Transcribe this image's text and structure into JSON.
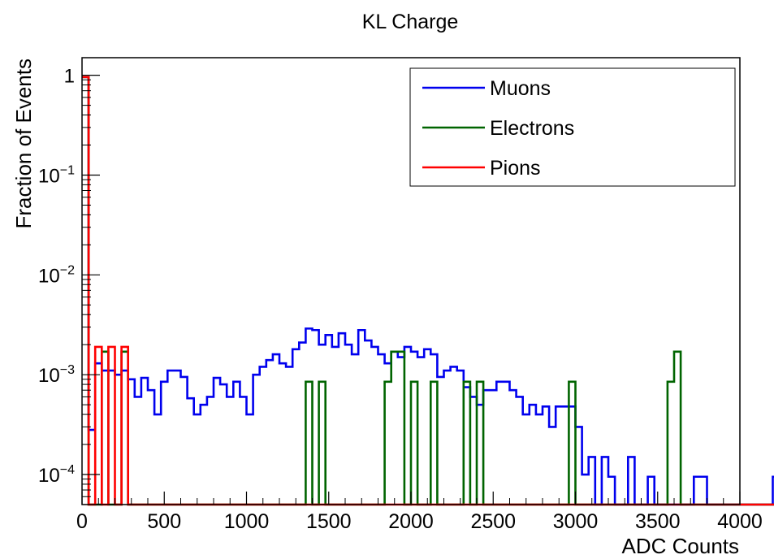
{
  "chart_data": {
    "type": "histogram",
    "title": "KL Charge",
    "xlabel": "ADC Counts",
    "ylabel": "Fraction of Events",
    "xlim": [
      0,
      4000
    ],
    "ylim": [
      5e-05,
      1.5
    ],
    "ylog": true,
    "bin_width": 40,
    "x_ticks": [
      "0",
      "500",
      "1000",
      "1500",
      "2000",
      "2500",
      "3000",
      "3500",
      "4000"
    ],
    "y_ticks": [
      {
        "base": "10",
        "exp": "−4"
      },
      {
        "base": "10",
        "exp": "−3"
      },
      {
        "base": "10",
        "exp": "−2"
      },
      {
        "base": "10",
        "exp": "−1"
      },
      {
        "base": "1",
        "exp": ""
      }
    ],
    "legend": {
      "position": "top-right"
    },
    "series": [
      {
        "name": "Muons",
        "color": "#0000ee",
        "values": [
          0.96,
          0.00028,
          0.0013,
          0.0011,
          0.0011,
          0.001,
          0.0011,
          0.0009,
          0.0006,
          0.00093,
          0.0007,
          0.0004,
          0.00085,
          0.0011,
          0.0011,
          0.00095,
          0.00058,
          0.0004,
          0.0005,
          0.0006,
          0.00093,
          0.0008,
          0.0006,
          0.00085,
          0.0006,
          0.0004,
          0.001,
          0.0012,
          0.0014,
          0.0016,
          0.0013,
          0.0012,
          0.0018,
          0.0021,
          0.0029,
          0.0028,
          0.002,
          0.0025,
          0.0019,
          0.0026,
          0.002,
          0.0016,
          0.0028,
          0.0022,
          0.0019,
          0.0016,
          0.0013,
          0.0017,
          0.0015,
          0.0019,
          0.0017,
          0.0015,
          0.0018,
          0.0016,
          0.00095,
          0.0011,
          0.0012,
          0.0011,
          0.00075,
          0.0006,
          0.0005,
          0.0007,
          0.0007,
          0.00085,
          0.00085,
          0.0007,
          0.0006,
          0.0004,
          0.0005,
          0.0004,
          0.00048,
          0.0003,
          0.00048,
          0.00048,
          0.00048,
          0.0003,
          0.0001,
          0.00015,
          4.8e-05,
          0.00015,
          9.5e-05,
          4.8e-05,
          4.8e-05,
          0.00015,
          4.8e-05,
          4.8e-05,
          9.5e-05,
          4.8e-05,
          4.8e-05,
          4.8e-05,
          4.8e-05,
          4.8e-05,
          4.8e-05,
          9.5e-05,
          9.5e-05,
          4.8e-05,
          4.8e-05,
          4.8e-05,
          4.8e-05,
          4.8e-05,
          4.8e-05,
          4.8e-05,
          4.8e-05,
          4.8e-05,
          4.8e-05,
          9.5e-05,
          4.8e-05,
          4.8e-05,
          4.8e-05,
          4.8e-05,
          4.8e-05,
          4.8e-05,
          4.8e-05,
          4.8e-05,
          4.8e-05,
          4.8e-05,
          4.8e-05,
          4.8e-05,
          4.8e-05,
          4.8e-05,
          4.8e-05,
          4.8e-05,
          4.8e-05,
          4.8e-05,
          4.8e-05,
          4.8e-05,
          4.8e-05,
          4.8e-05,
          4.8e-05,
          4.8e-05,
          4.8e-05,
          4.8e-05,
          4.8e-05,
          4.8e-05,
          4.8e-05,
          4.8e-05,
          4.8e-05,
          4.8e-05,
          4.8e-05,
          4.8e-05,
          4.8e-05,
          4.8e-05,
          4.8e-05,
          4.8e-05,
          4.8e-05,
          4.8e-05,
          4.8e-05,
          4.8e-05,
          4.8e-05,
          4.8e-05,
          4.8e-05,
          4.8e-05,
          4.8e-05,
          4.8e-05,
          4.8e-05,
          4.8e-05,
          4.8e-05,
          4.8e-05,
          4.8e-05,
          4.8e-05,
          4.8e-05,
          4.8e-05,
          4.8e-05,
          4.8e-05,
          4.8e-05,
          4.8e-05,
          4.8e-05,
          4.8e-05,
          4.8e-05,
          4.8e-05,
          4.8e-05,
          4.8e-05,
          4.8e-05,
          4.8e-05,
          4.8e-05,
          4.8e-05,
          4.8e-05,
          4.8e-05,
          4.8e-05,
          4.8e-05,
          4.8e-05,
          4.8e-05,
          4.8e-05,
          4.8e-05,
          4.8e-05,
          4.8e-05,
          4.8e-05,
          4.8e-05,
          4.8e-05,
          4.8e-05,
          4.8e-05,
          4.8e-05,
          4.8e-05,
          4.8e-05
        ]
      },
      {
        "name": "Electrons",
        "color": "#006400",
        "values": [
          0.96,
          4.8e-05,
          4.8e-05,
          0.0017,
          4.8e-05,
          4.8e-05,
          0.0017,
          4.8e-05,
          4.8e-05,
          4.8e-05,
          4.8e-05,
          4.8e-05,
          4.8e-05,
          4.8e-05,
          4.8e-05,
          4.8e-05,
          4.8e-05,
          4.8e-05,
          4.8e-05,
          4.8e-05,
          4.8e-05,
          4.8e-05,
          4.8e-05,
          4.8e-05,
          4.8e-05,
          4.8e-05,
          4.8e-05,
          4.8e-05,
          4.8e-05,
          4.8e-05,
          4.8e-05,
          4.8e-05,
          4.8e-05,
          4.8e-05,
          0.00085,
          4.8e-05,
          0.00085,
          4.8e-05,
          4.8e-05,
          4.8e-05,
          4.8e-05,
          4.8e-05,
          4.8e-05,
          4.8e-05,
          4.8e-05,
          4.8e-05,
          0.00085,
          0.0017,
          0.0017,
          4.8e-05,
          0.00085,
          4.8e-05,
          4.8e-05,
          0.00085,
          4.8e-05,
          4.8e-05,
          4.8e-05,
          4.8e-05,
          0.00085,
          4.8e-05,
          0.00085,
          4.8e-05,
          4.8e-05,
          4.8e-05,
          4.8e-05,
          4.8e-05,
          4.8e-05,
          4.8e-05,
          4.8e-05,
          4.8e-05,
          4.8e-05,
          4.8e-05,
          4.8e-05,
          4.8e-05,
          0.00085,
          4.8e-05,
          4.8e-05,
          4.8e-05,
          4.8e-05,
          4.8e-05,
          4.8e-05,
          4.8e-05,
          4.8e-05,
          4.8e-05,
          4.8e-05,
          4.8e-05,
          4.8e-05,
          4.8e-05,
          4.8e-05,
          0.00085,
          0.0017,
          4.8e-05,
          4.8e-05,
          4.8e-05,
          4.8e-05,
          4.8e-05,
          4.8e-05,
          4.8e-05,
          4.8e-05,
          4.8e-05,
          4.8e-05,
          4.8e-05,
          4.8e-05,
          4.8e-05,
          4.8e-05,
          4.8e-05,
          4.8e-05,
          4.8e-05,
          4.8e-05,
          4.8e-05,
          4.8e-05,
          4.8e-05,
          4.8e-05,
          4.8e-05,
          4.8e-05,
          4.8e-05,
          4.8e-05,
          4.8e-05,
          4.8e-05,
          4.8e-05,
          4.8e-05,
          4.8e-05,
          4.8e-05,
          4.8e-05,
          4.8e-05,
          4.8e-05,
          4.8e-05,
          4.8e-05,
          4.8e-05,
          4.8e-05,
          4.8e-05,
          4.8e-05,
          4.8e-05,
          4.8e-05,
          4.8e-05,
          4.8e-05,
          4.8e-05,
          4.8e-05,
          4.8e-05,
          4.8e-05,
          4.8e-05,
          4.8e-05,
          4.8e-05,
          4.8e-05,
          4.8e-05,
          4.8e-05,
          4.8e-05,
          4.8e-05,
          4.8e-05,
          4.8e-05,
          4.8e-05,
          4.8e-05,
          4.8e-05,
          4.8e-05,
          4.8e-05,
          4.8e-05,
          4.8e-05,
          4.8e-05,
          4.8e-05,
          4.8e-05,
          4.8e-05,
          4.8e-05,
          4.8e-05,
          4.8e-05,
          4.8e-05,
          4.8e-05,
          4.8e-05,
          4.8e-05,
          4.8e-05,
          4.8e-05,
          4.8e-05,
          4.8e-05,
          4.8e-05,
          4.8e-05,
          4.8e-05,
          4.8e-05,
          4.8e-05,
          4.8e-05,
          4.8e-05,
          4.8e-05,
          4.8e-05,
          4.8e-05,
          4.8e-05,
          4.8e-05,
          4.8e-05,
          4.8e-05,
          4.8e-05,
          4.8e-05,
          4.8e-05,
          4.8e-05,
          4.8e-05,
          4.8e-05,
          4.8e-05,
          4.8e-05,
          4.8e-05,
          4.8e-05,
          4.8e-05,
          4.8e-05,
          4.8e-05,
          4.8e-05,
          4.8e-05
        ]
      },
      {
        "name": "Pions",
        "color": "#ff0000",
        "values": [
          0.96,
          4.8e-05,
          0.0019,
          4.8e-05,
          0.0019,
          4.8e-05,
          0.0019,
          4.8e-05,
          4.8e-05,
          4.8e-05,
          4.8e-05,
          4.8e-05,
          4.8e-05,
          4.8e-05,
          4.8e-05,
          4.8e-05,
          4.8e-05,
          4.8e-05,
          4.8e-05,
          4.8e-05,
          4.8e-05,
          4.8e-05,
          4.8e-05,
          4.8e-05,
          4.8e-05,
          4.8e-05,
          4.8e-05,
          4.8e-05,
          4.8e-05,
          4.8e-05,
          4.8e-05,
          4.8e-05,
          4.8e-05,
          4.8e-05,
          4.8e-05,
          4.8e-05,
          4.8e-05,
          4.8e-05,
          4.8e-05,
          4.8e-05,
          4.8e-05,
          4.8e-05,
          4.8e-05,
          4.8e-05,
          4.8e-05,
          4.8e-05,
          4.8e-05,
          4.8e-05,
          4.8e-05,
          4.8e-05,
          4.8e-05,
          4.8e-05,
          4.8e-05,
          4.8e-05,
          4.8e-05,
          4.8e-05,
          4.8e-05,
          4.8e-05,
          4.8e-05,
          4.8e-05,
          4.8e-05,
          4.8e-05,
          4.8e-05,
          4.8e-05,
          4.8e-05,
          4.8e-05,
          4.8e-05,
          4.8e-05,
          4.8e-05,
          4.8e-05,
          4.8e-05,
          4.8e-05,
          4.8e-05,
          4.8e-05,
          4.8e-05,
          4.8e-05,
          4.8e-05,
          4.8e-05,
          4.8e-05,
          4.8e-05,
          4.8e-05,
          4.8e-05,
          4.8e-05,
          4.8e-05,
          4.8e-05,
          4.8e-05,
          4.8e-05,
          4.8e-05,
          4.8e-05,
          4.8e-05,
          4.8e-05,
          4.8e-05,
          4.8e-05,
          4.8e-05,
          4.8e-05,
          4.8e-05,
          4.8e-05,
          4.8e-05,
          4.8e-05,
          4.8e-05,
          4.8e-05,
          4.8e-05,
          4.8e-05,
          4.8e-05,
          4.8e-05,
          4.8e-05,
          4.8e-05,
          4.8e-05,
          4.8e-05,
          4.8e-05,
          4.8e-05,
          4.8e-05,
          4.8e-05,
          4.8e-05,
          4.8e-05,
          4.8e-05,
          4.8e-05,
          4.8e-05,
          4.8e-05,
          4.8e-05,
          4.8e-05,
          4.8e-05,
          4.8e-05,
          4.8e-05,
          4.8e-05,
          4.8e-05,
          4.8e-05,
          4.8e-05,
          4.8e-05,
          4.8e-05,
          4.8e-05,
          4.8e-05,
          4.8e-05,
          4.8e-05,
          4.8e-05,
          4.8e-05,
          4.8e-05,
          4.8e-05,
          4.8e-05,
          4.8e-05,
          4.8e-05,
          4.8e-05,
          4.8e-05,
          4.8e-05,
          4.8e-05,
          4.8e-05,
          4.8e-05,
          4.8e-05,
          4.8e-05,
          4.8e-05,
          4.8e-05,
          4.8e-05,
          4.8e-05,
          4.8e-05,
          4.8e-05,
          4.8e-05,
          4.8e-05,
          4.8e-05,
          4.8e-05,
          4.8e-05,
          4.8e-05,
          4.8e-05,
          4.8e-05,
          4.8e-05,
          4.8e-05,
          4.8e-05,
          4.8e-05,
          4.8e-05,
          4.8e-05,
          4.8e-05,
          4.8e-05,
          4.8e-05,
          4.8e-05,
          4.8e-05,
          4.8e-05,
          4.8e-05,
          4.8e-05,
          4.8e-05,
          4.8e-05,
          4.8e-05,
          4.8e-05,
          4.8e-05,
          4.8e-05,
          4.8e-05,
          4.8e-05,
          4.8e-05,
          4.8e-05,
          4.8e-05,
          4.8e-05,
          4.8e-05,
          4.8e-05,
          4.8e-05,
          4.8e-05,
          4.8e-05,
          4.8e-05,
          4.8e-05,
          4.8e-05,
          4.8e-05,
          4.8e-05,
          4.8e-05,
          4.8e-05,
          4.8e-05,
          4.8e-05,
          4.8e-05,
          4.8e-05,
          4.8e-05
        ]
      }
    ]
  }
}
